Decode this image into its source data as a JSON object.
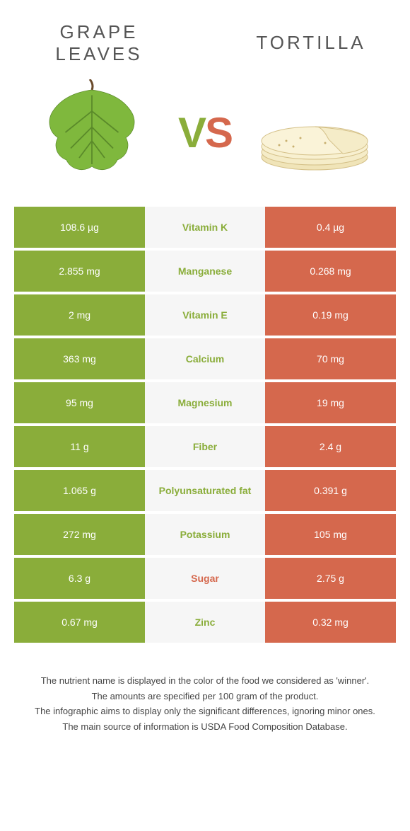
{
  "header": {
    "left_title": "Grape leaves",
    "right_title": "Tortilla",
    "vs_v": "V",
    "vs_s": "S"
  },
  "colors": {
    "left": "#8aad3a",
    "right": "#d5684d",
    "mid_bg": "#f6f6f6",
    "page_bg": "#ffffff"
  },
  "rows": [
    {
      "left": "108.6 µg",
      "nutrient": "Vitamin K",
      "right": "0.4 µg",
      "winner": "left"
    },
    {
      "left": "2.855 mg",
      "nutrient": "Manganese",
      "right": "0.268 mg",
      "winner": "left"
    },
    {
      "left": "2 mg",
      "nutrient": "Vitamin E",
      "right": "0.19 mg",
      "winner": "left"
    },
    {
      "left": "363 mg",
      "nutrient": "Calcium",
      "right": "70 mg",
      "winner": "left"
    },
    {
      "left": "95 mg",
      "nutrient": "Magnesium",
      "right": "19 mg",
      "winner": "left"
    },
    {
      "left": "11 g",
      "nutrient": "Fiber",
      "right": "2.4 g",
      "winner": "left"
    },
    {
      "left": "1.065 g",
      "nutrient": "Polyunsaturated fat",
      "right": "0.391 g",
      "winner": "left"
    },
    {
      "left": "272 mg",
      "nutrient": "Potassium",
      "right": "105 mg",
      "winner": "left"
    },
    {
      "left": "6.3 g",
      "nutrient": "Sugar",
      "right": "2.75 g",
      "winner": "right"
    },
    {
      "left": "0.67 mg",
      "nutrient": "Zinc",
      "right": "0.32 mg",
      "winner": "left"
    }
  ],
  "footer": {
    "line1": "The nutrient name is displayed in the color of the food we considered as 'winner'.",
    "line2": "The amounts are specified per 100 gram of the product.",
    "line3": "The infographic aims to display only the significant differences, ignoring minor ones.",
    "line4": "The main source of information is USDA Food Composition Database."
  }
}
